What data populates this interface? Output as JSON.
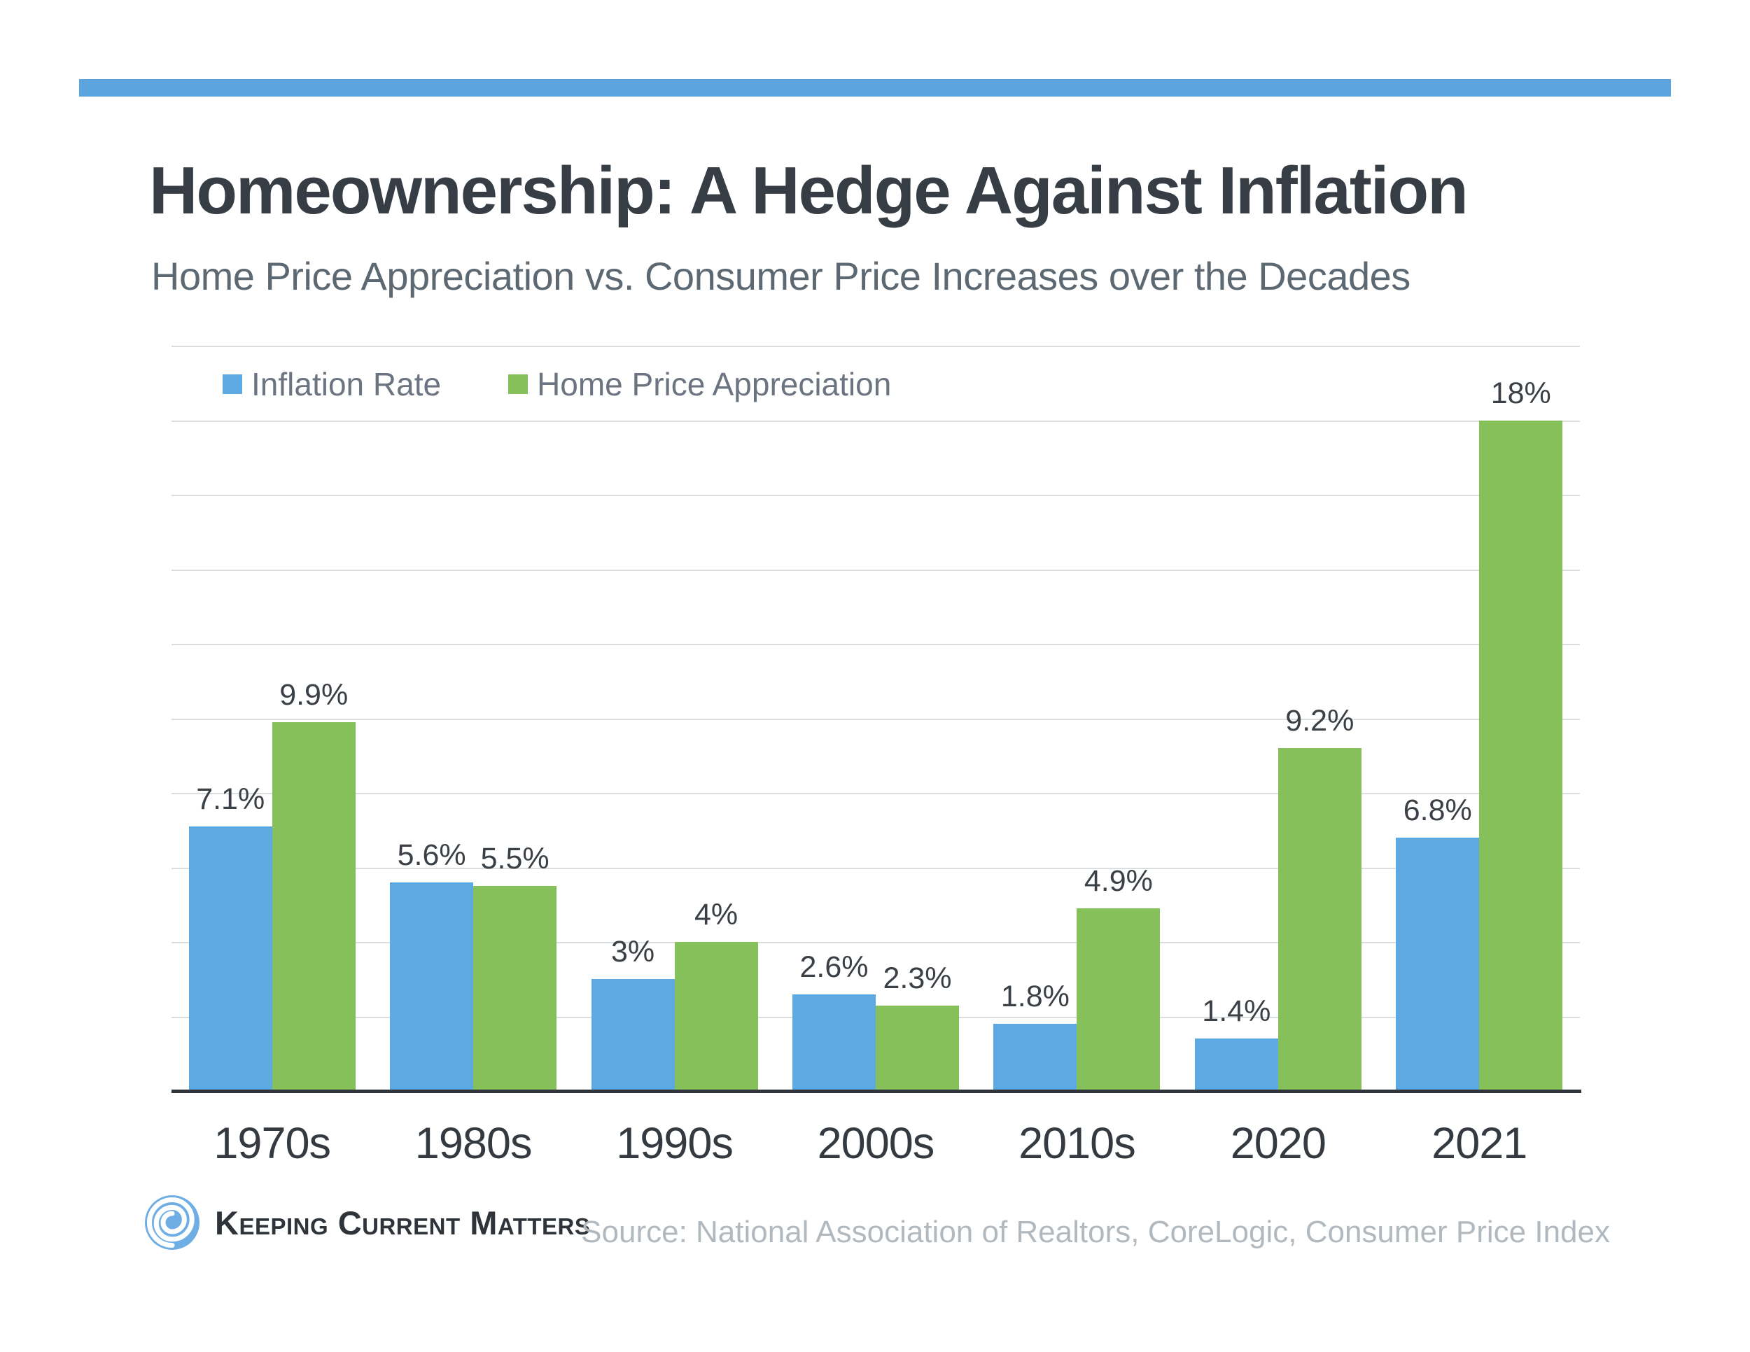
{
  "page": {
    "accent_color": "#5ca4df",
    "background": "#ffffff",
    "gridline_color": "#dbdedf",
    "axis_color": "#2f353b"
  },
  "header": {
    "title": "Homeownership: A Hedge Against Inflation",
    "subtitle": "Home Price Appreciation vs. Consumer Price Increases over the Decades"
  },
  "chart_data": {
    "type": "bar",
    "title": "Homeownership: A Hedge Against Inflation",
    "subtitle": "Home Price Appreciation vs. Consumer Price Increases over the Decades",
    "categories": [
      "1970s",
      "1980s",
      "1990s",
      "2000s",
      "2010s",
      "2020",
      "2021"
    ],
    "series": [
      {
        "name": "Inflation Rate",
        "color": "#5da9e2",
        "values": [
          7.1,
          5.6,
          3,
          2.6,
          1.8,
          1.4,
          6.8
        ],
        "labels": [
          "7.1%",
          "5.6%",
          "3%",
          "2.6%",
          "1.8%",
          "1.4%",
          "6.8%"
        ]
      },
      {
        "name": "Home Price Appreciation",
        "color": "#85c05b",
        "values": [
          9.9,
          5.5,
          4,
          2.3,
          4.9,
          9.2,
          18
        ],
        "labels": [
          "9.9%",
          "5.5%",
          "4%",
          "2.3%",
          "4.9%",
          "9.2%",
          "18%"
        ]
      }
    ],
    "xlabel": "",
    "ylabel": "",
    "ylim": [
      0,
      20
    ],
    "gridline_step": 2,
    "grid": true,
    "y_axis_labels_shown": false,
    "legend_position": "top-left"
  },
  "footer": {
    "brand": "Keeping Current Matters",
    "source": "Source: National Association of Realtors, CoreLogic, Consumer Price Index"
  }
}
